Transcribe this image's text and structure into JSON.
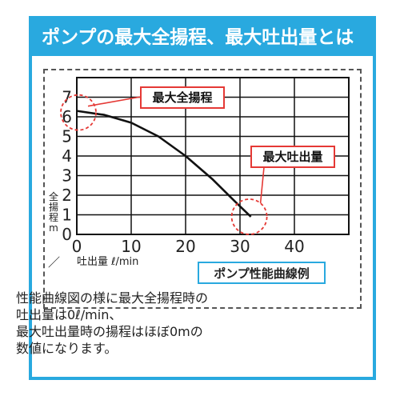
{
  "header": {
    "title": "ポンプの最大全揚程、最大吐出量とは"
  },
  "chart_data": {
    "type": "line",
    "title": "",
    "xlabel": "吐出量 ℓ/min",
    "ylabel": "全揚程 m",
    "xlim": [
      0,
      50
    ],
    "ylim": [
      0,
      8
    ],
    "x_ticks": [
      "0",
      "10",
      "20",
      "30",
      "40"
    ],
    "y_ticks": [
      "0",
      "1",
      "2",
      "3",
      "4",
      "5",
      "6",
      "7"
    ],
    "grid": true,
    "series": [
      {
        "x": [
          0,
          5,
          10,
          15,
          20,
          25,
          29,
          32
        ],
        "y": [
          6.3,
          6.1,
          5.7,
          5.0,
          4.0,
          2.8,
          1.7,
          0.9
        ]
      }
    ],
    "annotations": {
      "max_head": "最大全揚程",
      "max_flow": "最大吐出量"
    },
    "corner_mark": "／"
  },
  "caption": "ポンプ性能曲線例",
  "description": [
    "性能曲線図の様に最大全揚程時の",
    "吐出量は0ℓ/min、",
    "最大吐出量時の揚程はほぼ0mの",
    "数値になります。"
  ],
  "colors": {
    "accent": "#29a9df",
    "callout": "#e53935",
    "curve": "#111111"
  }
}
